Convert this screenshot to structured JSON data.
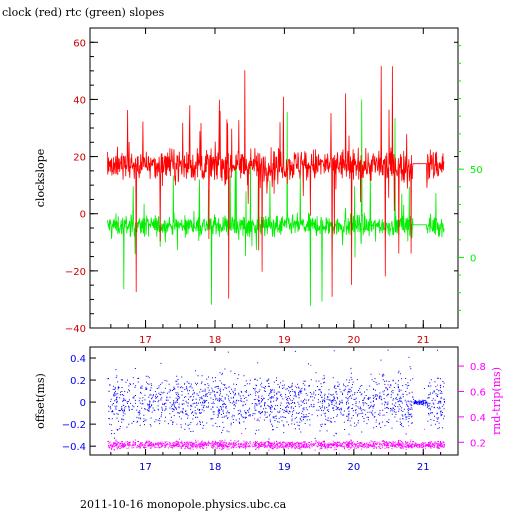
{
  "title": "clock (red) rtc (green) slopes",
  "footer": "2011-10-16 monopole.physics.ubc.ca",
  "colors": {
    "frame": "#000000",
    "clock": "#ff0000",
    "rtc": "#00ee00",
    "offset": "#0000ff",
    "roundtrip": "#ff00ff",
    "top_right_axis": "#00ee00",
    "bottom_left_axis": "#0000ff",
    "bottom_right_axis": "#ff00ff",
    "top_x_ticks": "#cc0000",
    "bottom_x_ticks": "#0000cc"
  },
  "chart_data": [
    {
      "type": "line",
      "title": "clock (red) rtc (green) slopes",
      "xlabel": "",
      "ylabel": "clockslope",
      "xlim": [
        16.2,
        21.5
      ],
      "ylim": [
        -40,
        65
      ],
      "xticks": [
        17,
        18,
        19,
        20,
        21
      ],
      "yticks": [
        -40,
        -20,
        0,
        20,
        40,
        60
      ],
      "y2lim": [
        -40,
        130
      ],
      "y2ticks": [
        0,
        50
      ],
      "grid": false,
      "series": [
        {
          "name": "clock",
          "axis": "left",
          "x_range": [
            16.45,
            21.3
          ],
          "baseline": 17,
          "noise": 2.8,
          "spike_max": 60,
          "spike_min": -31
        },
        {
          "name": "rtc",
          "axis": "right",
          "x_range": [
            16.45,
            21.3
          ],
          "baseline": 18,
          "noise": 3.0,
          "spike_max": 90,
          "spike_min": -35
        }
      ]
    },
    {
      "type": "scatter",
      "xlabel": "",
      "ylabel": "offset(ms)",
      "y2label": "rnd-trip(ms)",
      "xlim": [
        16.2,
        21.5
      ],
      "ylim": [
        -0.48,
        0.5
      ],
      "xticks": [
        17,
        18,
        19,
        20,
        21
      ],
      "yticks": [
        -0.4,
        -0.2,
        0,
        0.2,
        0.4
      ],
      "y2lim": [
        0.1,
        0.95
      ],
      "y2ticks": [
        0.2,
        0.4,
        0.6,
        0.8
      ],
      "grid": false,
      "series": [
        {
          "name": "offset",
          "axis": "left",
          "x_range": [
            16.45,
            21.3
          ],
          "center": 0.0,
          "spread": 0.12
        },
        {
          "name": "rnd-trip",
          "axis": "right",
          "x_range": [
            16.45,
            21.3
          ],
          "center": 0.18,
          "spread": 0.015
        }
      ]
    }
  ]
}
